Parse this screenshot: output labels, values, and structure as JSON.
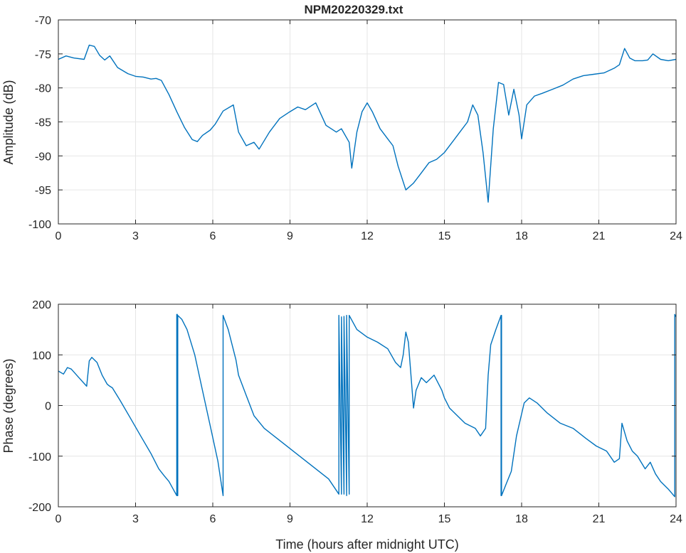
{
  "chart_data": [
    {
      "type": "line",
      "title": "NPM20220329.txt",
      "xlabel": "",
      "ylabel": "Amplitude (dB)",
      "xlim": [
        0,
        24
      ],
      "ylim": [
        -100,
        -70
      ],
      "xticks": [
        0,
        3,
        6,
        9,
        12,
        15,
        18,
        21,
        24
      ],
      "yticks": [
        -100,
        -95,
        -90,
        -85,
        -80,
        -75,
        -70
      ],
      "grid": true,
      "color": "#0072BD",
      "series": [
        {
          "x": [
            0,
            0.3,
            0.6,
            1.0,
            1.2,
            1.4,
            1.6,
            1.8,
            2.0,
            2.3,
            2.7,
            3.0,
            3.3,
            3.6,
            3.8,
            4.0,
            4.3,
            4.6,
            4.9,
            5.2,
            5.4,
            5.6,
            5.9,
            6.1,
            6.4,
            6.8,
            7.0,
            7.3,
            7.6,
            7.8,
            8.2,
            8.6,
            9.0,
            9.3,
            9.6,
            10.0,
            10.4,
            10.8,
            11.0,
            11.3,
            11.4,
            11.6,
            11.8,
            12.0,
            12.2,
            12.5,
            12.8,
            13.0,
            13.2,
            13.5,
            13.8,
            14.1,
            14.4,
            14.7,
            15.0,
            15.3,
            15.6,
            15.9,
            16.1,
            16.3,
            16.5,
            16.7,
            16.9,
            17.1,
            17.3,
            17.5,
            17.7,
            17.9,
            18.0,
            18.2,
            18.5,
            18.8,
            19.2,
            19.6,
            20.0,
            20.4,
            20.8,
            21.2,
            21.6,
            21.8,
            22.0,
            22.2,
            22.4,
            22.7,
            22.9,
            23.1,
            23.4,
            23.7,
            24.0
          ],
          "y": [
            -75.8,
            -75.3,
            -75.6,
            -75.8,
            -73.7,
            -73.9,
            -75.2,
            -75.9,
            -75.3,
            -77.0,
            -77.9,
            -78.3,
            -78.4,
            -78.7,
            -78.6,
            -78.9,
            -81.0,
            -83.5,
            -85.8,
            -87.6,
            -87.9,
            -87.0,
            -86.2,
            -85.3,
            -83.4,
            -82.5,
            -86.5,
            -88.5,
            -88.0,
            -89.0,
            -86.5,
            -84.5,
            -83.5,
            -82.8,
            -83.2,
            -82.2,
            -85.5,
            -86.5,
            -86.0,
            -88.0,
            -91.8,
            -86.5,
            -83.5,
            -82.2,
            -83.5,
            -86.0,
            -87.5,
            -88.5,
            -91.5,
            -95.0,
            -94.0,
            -92.5,
            -91.0,
            -90.5,
            -89.5,
            -88.0,
            -86.5,
            -85.0,
            -82.5,
            -84.0,
            -89.5,
            -96.8,
            -86.0,
            -79.2,
            -79.5,
            -84.0,
            -80.2,
            -84.0,
            -87.5,
            -82.5,
            -81.2,
            -80.8,
            -80.2,
            -79.6,
            -78.7,
            -78.2,
            -78.0,
            -77.8,
            -77.1,
            -76.6,
            -74.2,
            -75.6,
            -76.0,
            -76.0,
            -75.9,
            -75.0,
            -75.8,
            -76.0,
            -75.8
          ]
        }
      ]
    },
    {
      "type": "line",
      "title": "",
      "xlabel": "Time (hours after midnight UTC)",
      "ylabel": "Phase (degrees)",
      "xlim": [
        0,
        24
      ],
      "ylim": [
        -200,
        200
      ],
      "xticks": [
        0,
        3,
        6,
        9,
        12,
        15,
        18,
        21,
        24
      ],
      "yticks": [
        -200,
        -100,
        0,
        100,
        200
      ],
      "grid": true,
      "color": "#0072BD",
      "series": [
        {
          "x": [
            0,
            0.2,
            0.35,
            0.5,
            0.8,
            1.1,
            1.2,
            1.3,
            1.5,
            1.7,
            1.9,
            2.0,
            2.1,
            2.4,
            2.8,
            3.2,
            3.6,
            3.9,
            4.1,
            4.3,
            4.6,
            4.6,
            4.62,
            4.62,
            4.64,
            4.64,
            4.8,
            5.0,
            5.3,
            5.6,
            5.9,
            6.2,
            6.4,
            6.4,
            6.6,
            6.9,
            7.0,
            7.3,
            7.6,
            8.0,
            8.5,
            9.0,
            9.5,
            10.0,
            10.5,
            10.9,
            10.9,
            11.0,
            11.0,
            11.1,
            11.1,
            11.2,
            11.2,
            11.3,
            11.3,
            11.6,
            12.0,
            12.4,
            12.8,
            13.1,
            13.3,
            13.4,
            13.5,
            13.6,
            13.7,
            13.8,
            13.9,
            14.1,
            14.3,
            14.6,
            14.9,
            15.0,
            15.2,
            15.4,
            15.8,
            16.2,
            16.4,
            16.6,
            16.7,
            16.8,
            17.0,
            17.2,
            17.2,
            17.22,
            17.22,
            17.4,
            17.6,
            17.8,
            18.1,
            18.3,
            18.6,
            19.0,
            19.5,
            20.0,
            20.5,
            20.9,
            21.3,
            21.6,
            21.8,
            21.9,
            22.1,
            22.3,
            22.5,
            22.8,
            23.0,
            23.2,
            23.4,
            23.7,
            23.95,
            23.95,
            24.0
          ],
          "y": [
            68,
            62,
            75,
            72,
            55,
            38,
            88,
            95,
            85,
            60,
            42,
            38,
            35,
            10,
            -25,
            -60,
            -95,
            -125,
            -138,
            -150,
            -178,
            180,
            -178,
            180,
            -178,
            178,
            170,
            150,
            100,
            30,
            -40,
            -110,
            -178,
            178,
            150,
            90,
            60,
            20,
            -20,
            -45,
            -65,
            -85,
            -105,
            -125,
            -145,
            -175,
            178,
            -175,
            175,
            -175,
            176,
            -178,
            178,
            -175,
            178,
            150,
            135,
            125,
            112,
            85,
            75,
            100,
            145,
            125,
            60,
            -5,
            30,
            55,
            45,
            60,
            30,
            15,
            -5,
            -15,
            -35,
            -45,
            -60,
            -45,
            60,
            120,
            150,
            178,
            -178,
            178,
            -178,
            -155,
            -130,
            -60,
            5,
            15,
            5,
            -15,
            -35,
            -45,
            -65,
            -80,
            -90,
            -112,
            -105,
            -35,
            -70,
            -90,
            -100,
            -125,
            -112,
            -135,
            -150,
            -165,
            -180,
            180,
            175
          ]
        }
      ]
    }
  ]
}
